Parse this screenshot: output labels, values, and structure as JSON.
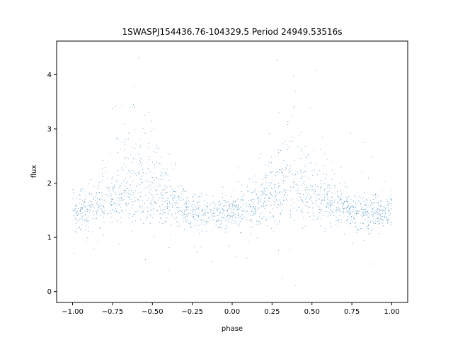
{
  "chart_data": {
    "type": "scatter",
    "title": "1SWASPJ154436.76-104329.5 Period 24949.53516s",
    "xlabel": "phase",
    "ylabel": "flux",
    "xlim": [
      -1.1,
      1.1
    ],
    "ylim": [
      -0.2,
      4.62
    ],
    "xticks": [
      -1.0,
      -0.75,
      -0.5,
      -0.25,
      0.0,
      0.25,
      0.5,
      0.75,
      1.0
    ],
    "xtick_labels": [
      "−1.00",
      "−0.75",
      "−0.50",
      "−0.25",
      "0.00",
      "0.25",
      "0.50",
      "0.75",
      "1.00"
    ],
    "yticks": [
      0,
      1,
      2,
      3,
      4
    ],
    "ytick_labels": [
      "0",
      "1",
      "2",
      "3",
      "4"
    ],
    "grid": false,
    "marker_color": "#1f77b4",
    "series": [
      {
        "phase_range": [
          -1.0,
          1.0
        ],
        "baseline_flux": 1.45,
        "peak_flux_max": 4.4,
        "min_flux": 0.0,
        "hump_centers": [
          -0.6,
          0.4
        ],
        "hump_amplitude": 1.15
      }
    ]
  }
}
